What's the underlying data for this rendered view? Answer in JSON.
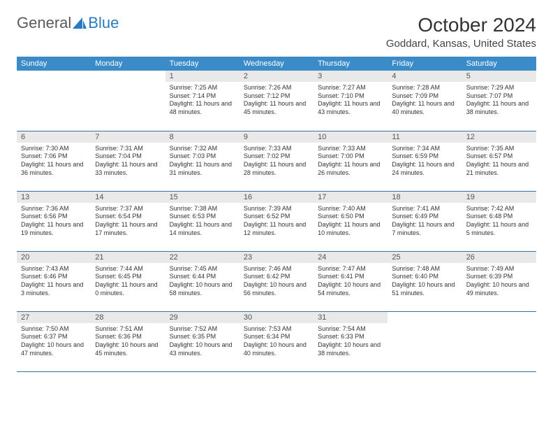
{
  "logo": {
    "word1": "General",
    "word2": "Blue"
  },
  "title": "October 2024",
  "location": "Goddard, Kansas, United States",
  "colors": {
    "header_bg": "#3b8bc9",
    "header_fg": "#ffffff",
    "daynum_bg": "#e9e9e9",
    "row_border": "#3b6fa0",
    "logo_blue": "#2a7bbf"
  },
  "weekdays": [
    "Sunday",
    "Monday",
    "Tuesday",
    "Wednesday",
    "Thursday",
    "Friday",
    "Saturday"
  ],
  "weeks": [
    [
      {
        "n": "",
        "sr": "",
        "ss": "",
        "dl": ""
      },
      {
        "n": "",
        "sr": "",
        "ss": "",
        "dl": ""
      },
      {
        "n": "1",
        "sr": "Sunrise: 7:25 AM",
        "ss": "Sunset: 7:14 PM",
        "dl": "Daylight: 11 hours and 48 minutes."
      },
      {
        "n": "2",
        "sr": "Sunrise: 7:26 AM",
        "ss": "Sunset: 7:12 PM",
        "dl": "Daylight: 11 hours and 45 minutes."
      },
      {
        "n": "3",
        "sr": "Sunrise: 7:27 AM",
        "ss": "Sunset: 7:10 PM",
        "dl": "Daylight: 11 hours and 43 minutes."
      },
      {
        "n": "4",
        "sr": "Sunrise: 7:28 AM",
        "ss": "Sunset: 7:09 PM",
        "dl": "Daylight: 11 hours and 40 minutes."
      },
      {
        "n": "5",
        "sr": "Sunrise: 7:29 AM",
        "ss": "Sunset: 7:07 PM",
        "dl": "Daylight: 11 hours and 38 minutes."
      }
    ],
    [
      {
        "n": "6",
        "sr": "Sunrise: 7:30 AM",
        "ss": "Sunset: 7:06 PM",
        "dl": "Daylight: 11 hours and 36 minutes."
      },
      {
        "n": "7",
        "sr": "Sunrise: 7:31 AM",
        "ss": "Sunset: 7:04 PM",
        "dl": "Daylight: 11 hours and 33 minutes."
      },
      {
        "n": "8",
        "sr": "Sunrise: 7:32 AM",
        "ss": "Sunset: 7:03 PM",
        "dl": "Daylight: 11 hours and 31 minutes."
      },
      {
        "n": "9",
        "sr": "Sunrise: 7:33 AM",
        "ss": "Sunset: 7:02 PM",
        "dl": "Daylight: 11 hours and 28 minutes."
      },
      {
        "n": "10",
        "sr": "Sunrise: 7:33 AM",
        "ss": "Sunset: 7:00 PM",
        "dl": "Daylight: 11 hours and 26 minutes."
      },
      {
        "n": "11",
        "sr": "Sunrise: 7:34 AM",
        "ss": "Sunset: 6:59 PM",
        "dl": "Daylight: 11 hours and 24 minutes."
      },
      {
        "n": "12",
        "sr": "Sunrise: 7:35 AM",
        "ss": "Sunset: 6:57 PM",
        "dl": "Daylight: 11 hours and 21 minutes."
      }
    ],
    [
      {
        "n": "13",
        "sr": "Sunrise: 7:36 AM",
        "ss": "Sunset: 6:56 PM",
        "dl": "Daylight: 11 hours and 19 minutes."
      },
      {
        "n": "14",
        "sr": "Sunrise: 7:37 AM",
        "ss": "Sunset: 6:54 PM",
        "dl": "Daylight: 11 hours and 17 minutes."
      },
      {
        "n": "15",
        "sr": "Sunrise: 7:38 AM",
        "ss": "Sunset: 6:53 PM",
        "dl": "Daylight: 11 hours and 14 minutes."
      },
      {
        "n": "16",
        "sr": "Sunrise: 7:39 AM",
        "ss": "Sunset: 6:52 PM",
        "dl": "Daylight: 11 hours and 12 minutes."
      },
      {
        "n": "17",
        "sr": "Sunrise: 7:40 AM",
        "ss": "Sunset: 6:50 PM",
        "dl": "Daylight: 11 hours and 10 minutes."
      },
      {
        "n": "18",
        "sr": "Sunrise: 7:41 AM",
        "ss": "Sunset: 6:49 PM",
        "dl": "Daylight: 11 hours and 7 minutes."
      },
      {
        "n": "19",
        "sr": "Sunrise: 7:42 AM",
        "ss": "Sunset: 6:48 PM",
        "dl": "Daylight: 11 hours and 5 minutes."
      }
    ],
    [
      {
        "n": "20",
        "sr": "Sunrise: 7:43 AM",
        "ss": "Sunset: 6:46 PM",
        "dl": "Daylight: 11 hours and 3 minutes."
      },
      {
        "n": "21",
        "sr": "Sunrise: 7:44 AM",
        "ss": "Sunset: 6:45 PM",
        "dl": "Daylight: 11 hours and 0 minutes."
      },
      {
        "n": "22",
        "sr": "Sunrise: 7:45 AM",
        "ss": "Sunset: 6:44 PM",
        "dl": "Daylight: 10 hours and 58 minutes."
      },
      {
        "n": "23",
        "sr": "Sunrise: 7:46 AM",
        "ss": "Sunset: 6:42 PM",
        "dl": "Daylight: 10 hours and 56 minutes."
      },
      {
        "n": "24",
        "sr": "Sunrise: 7:47 AM",
        "ss": "Sunset: 6:41 PM",
        "dl": "Daylight: 10 hours and 54 minutes."
      },
      {
        "n": "25",
        "sr": "Sunrise: 7:48 AM",
        "ss": "Sunset: 6:40 PM",
        "dl": "Daylight: 10 hours and 51 minutes."
      },
      {
        "n": "26",
        "sr": "Sunrise: 7:49 AM",
        "ss": "Sunset: 6:39 PM",
        "dl": "Daylight: 10 hours and 49 minutes."
      }
    ],
    [
      {
        "n": "27",
        "sr": "Sunrise: 7:50 AM",
        "ss": "Sunset: 6:37 PM",
        "dl": "Daylight: 10 hours and 47 minutes."
      },
      {
        "n": "28",
        "sr": "Sunrise: 7:51 AM",
        "ss": "Sunset: 6:36 PM",
        "dl": "Daylight: 10 hours and 45 minutes."
      },
      {
        "n": "29",
        "sr": "Sunrise: 7:52 AM",
        "ss": "Sunset: 6:35 PM",
        "dl": "Daylight: 10 hours and 43 minutes."
      },
      {
        "n": "30",
        "sr": "Sunrise: 7:53 AM",
        "ss": "Sunset: 6:34 PM",
        "dl": "Daylight: 10 hours and 40 minutes."
      },
      {
        "n": "31",
        "sr": "Sunrise: 7:54 AM",
        "ss": "Sunset: 6:33 PM",
        "dl": "Daylight: 10 hours and 38 minutes."
      },
      {
        "n": "",
        "sr": "",
        "ss": "",
        "dl": ""
      },
      {
        "n": "",
        "sr": "",
        "ss": "",
        "dl": ""
      }
    ]
  ]
}
